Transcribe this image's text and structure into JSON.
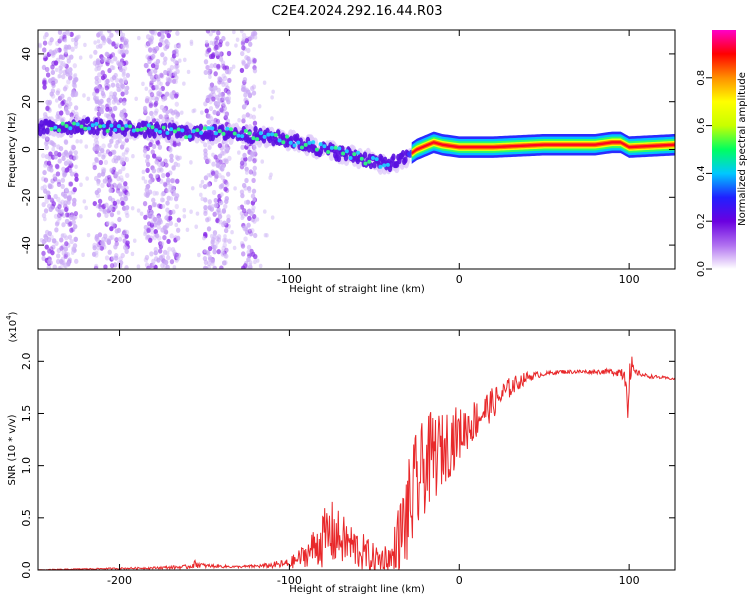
{
  "figure_title": "C2E4.2024.292.16.44.R03",
  "chart_data": [
    {
      "type": "heatmap",
      "panel": "top",
      "title": "C2E4.2024.292.16.44.R03",
      "xlabel": "Height of straight line (km)",
      "ylabel": "Frequency (Hz)",
      "xlim": [
        -248,
        127
      ],
      "ylim": [
        -50,
        50
      ],
      "xticks": [
        -200,
        -100,
        0,
        100
      ],
      "yticks": [
        40,
        20,
        0,
        -20,
        -40
      ],
      "colorbar": {
        "label": "Normalized spectral amplitude",
        "range": [
          0,
          1
        ],
        "ticks": [
          "0.0",
          "0.2",
          "0.4",
          "0.6",
          "0.8"
        ],
        "colors": [
          "#ffffff",
          "#b070f0",
          "#6a00e0",
          "#2020ff",
          "#00c8ff",
          "#00ff60",
          "#c8ff00",
          "#ffff00",
          "#ff9000",
          "#ff0000",
          "#ff00c8"
        ]
      },
      "ridge": {
        "x": [
          -248,
          -220,
          -200,
          -180,
          -160,
          -140,
          -120,
          -100,
          -80,
          -60,
          -45,
          -35,
          -25,
          -15,
          -10,
          0,
          20,
          50,
          80,
          90,
          95,
          100,
          127
        ],
        "y": [
          9,
          10,
          9,
          8,
          7,
          7,
          6,
          4,
          0,
          -3,
          -6,
          -5,
          0,
          3,
          2,
          1,
          1,
          2,
          2,
          3,
          3,
          1,
          2
        ]
      },
      "scatter_bands": [
        [
          -245,
          -225
        ],
        [
          -215,
          -195
        ],
        [
          -185,
          -165
        ],
        [
          -150,
          -135
        ],
        [
          -128,
          -120
        ]
      ]
    },
    {
      "type": "line",
      "panel": "bottom",
      "xlabel": "Height of straight line (km)",
      "ylabel": "SNR (10 * v/v)",
      "scale_label": "(x10",
      "scale_exp": "4",
      "xlim": [
        -248,
        127
      ],
      "ylim": [
        0,
        2.3
      ],
      "xticks": [
        -200,
        -100,
        0,
        100
      ],
      "yticks": [
        "0.0",
        "0.5",
        "1.0",
        "1.5",
        "2.0"
      ],
      "series": [
        {
          "name": "SNR",
          "color": "#e8282a",
          "x": [
            -248,
            -220,
            -180,
            -160,
            -155,
            -150,
            -130,
            -115,
            -100,
            -90,
            -80,
            -75,
            -70,
            -60,
            -50,
            -40,
            -35,
            -30,
            -25,
            -20,
            -15,
            -10,
            -5,
            0,
            10,
            20,
            30,
            40,
            50,
            60,
            70,
            80,
            90,
            95,
            98,
            100,
            101,
            103,
            110,
            127
          ],
          "base": [
            0.0,
            0.01,
            0.02,
            0.03,
            0.06,
            0.04,
            0.03,
            0.04,
            0.06,
            0.15,
            0.3,
            0.35,
            0.3,
            0.2,
            0.1,
            0.08,
            0.3,
            0.55,
            0.8,
            1.0,
            1.1,
            1.15,
            1.25,
            1.3,
            1.45,
            1.6,
            1.75,
            1.85,
            1.88,
            1.9,
            1.9,
            1.9,
            1.9,
            1.9,
            1.88,
            1.6,
            1.9,
            1.9,
            1.86,
            1.83
          ],
          "amp": [
            0.005,
            0.005,
            0.01,
            0.02,
            0.04,
            0.02,
            0.01,
            0.02,
            0.05,
            0.12,
            0.28,
            0.32,
            0.25,
            0.2,
            0.15,
            0.2,
            0.4,
            0.5,
            0.55,
            0.45,
            0.45,
            0.35,
            0.35,
            0.25,
            0.2,
            0.15,
            0.1,
            0.05,
            0.02,
            0.02,
            0.02,
            0.02,
            0.03,
            0.05,
            0.15,
            0.35,
            0.2,
            0.03,
            0.02,
            0.01
          ]
        }
      ]
    }
  ]
}
